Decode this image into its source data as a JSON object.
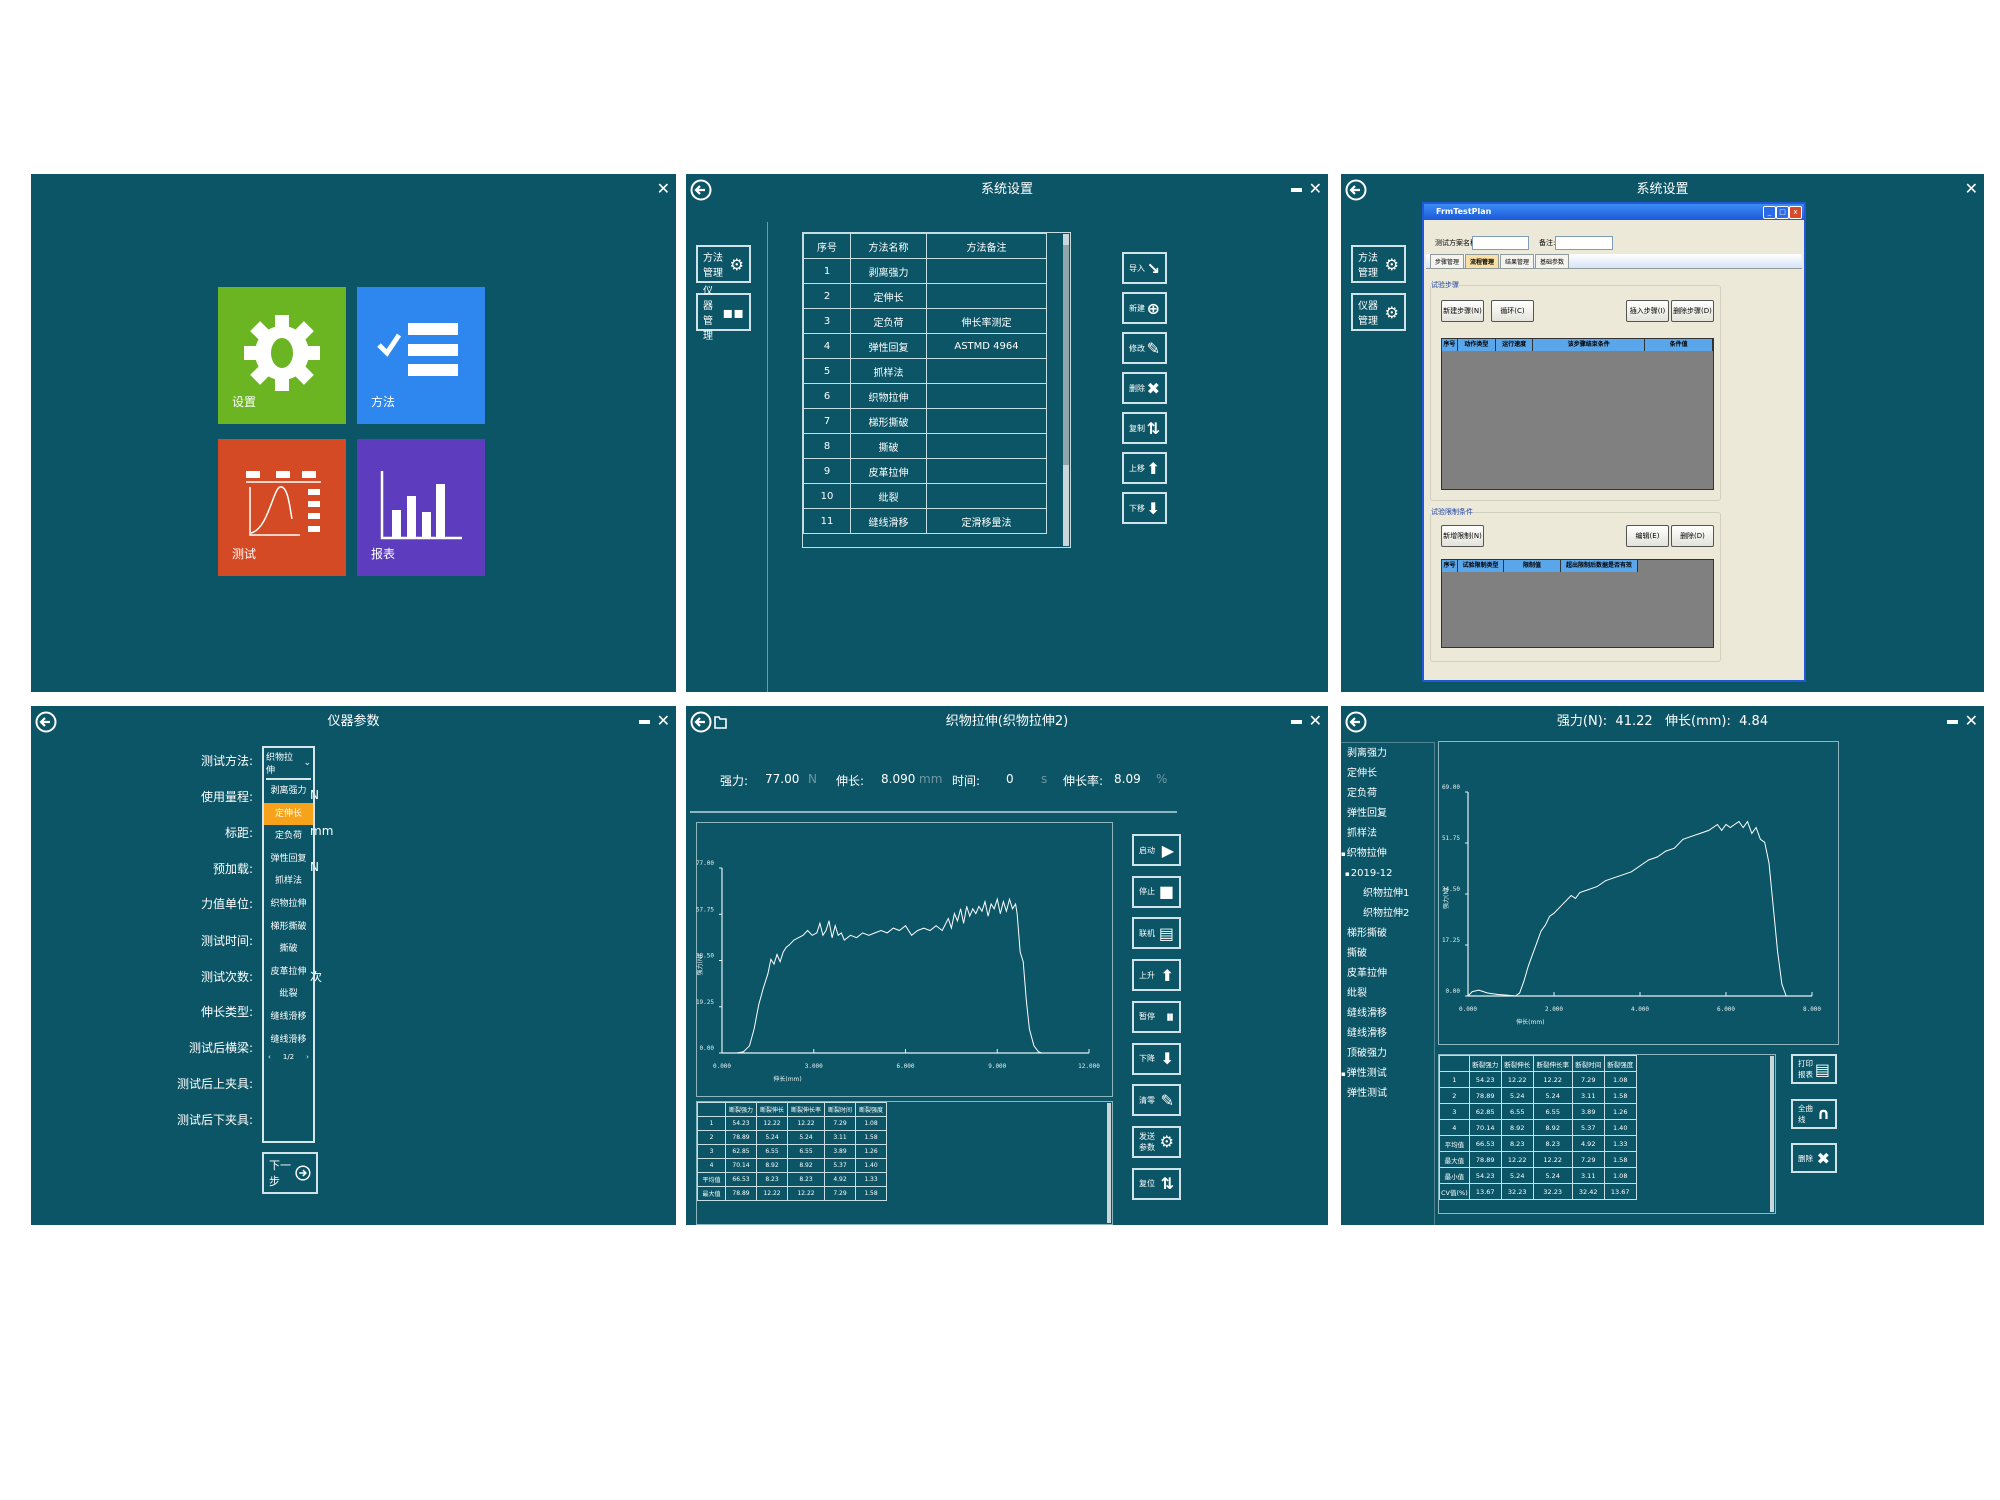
{
  "home": {
    "close_icon": "close-icon",
    "tiles": [
      {
        "label": "设置",
        "color": "#6ab521",
        "icon": "gear-icon"
      },
      {
        "label": "方法",
        "color": "#2d87ef",
        "icon": "checklist-icon"
      },
      {
        "label": "测试",
        "color": "#d44a25",
        "icon": "test-curve-icon"
      },
      {
        "label": "报表",
        "color": "#5d3dbd",
        "icon": "bar-chart-icon"
      }
    ]
  },
  "system_settings": {
    "title": "系统设置",
    "side_buttons": [
      {
        "label": "方法管理",
        "icon": "gear-icon"
      },
      {
        "label": "仪器管理",
        "icon": "blocks-icon"
      }
    ],
    "table": {
      "headers": [
        "序号",
        "方法名称",
        "方法备注"
      ],
      "rows": [
        [
          "1",
          "剥离强力",
          ""
        ],
        [
          "2",
          "定伸长",
          ""
        ],
        [
          "3",
          "定负荷",
          "伸长率测定"
        ],
        [
          "4",
          "弹性回复",
          "ASTMD 4964"
        ],
        [
          "5",
          "抓样法",
          ""
        ],
        [
          "6",
          "织物拉伸",
          ""
        ],
        [
          "7",
          "梯形撕破",
          ""
        ],
        [
          "8",
          "撕破",
          ""
        ],
        [
          "9",
          "皮革拉伸",
          ""
        ],
        [
          "10",
          "纰裂",
          ""
        ],
        [
          "11",
          "缝线滑移",
          "定滑移量法"
        ]
      ]
    },
    "actions": [
      {
        "label": "导入",
        "icon": "↘"
      },
      {
        "label": "新建",
        "icon": "⊕"
      },
      {
        "label": "修改",
        "icon": "✎"
      },
      {
        "label": "删除",
        "icon": "✖"
      },
      {
        "label": "复制",
        "icon": "⇅"
      },
      {
        "label": "上移",
        "icon": "⬆"
      },
      {
        "label": "下移",
        "icon": "⬇"
      }
    ]
  },
  "test_plan": {
    "title": "系统设置",
    "side_buttons": [
      {
        "label": "方法管理",
        "icon": "gear-icon"
      },
      {
        "label": "仪器管理",
        "icon": "gear-icon"
      }
    ],
    "window_title": "FrmTestPlan",
    "name_label": "测试方案名称:",
    "name_value": "",
    "remark_label": "备注:",
    "remark_value": "",
    "tabs": [
      "步骤管理",
      "流程管理",
      "结果管理",
      "基础参数"
    ],
    "active_tab": 1,
    "steps_group": "试验步骤",
    "steps_buttons": [
      "新建步骤(N)",
      "循环(C)",
      "插入步骤(I)",
      "删除步骤(D)"
    ],
    "steps_headers": [
      "序号",
      "动作类型",
      "运行速度",
      "该步骤结束条件",
      "条件值"
    ],
    "limits_group": "试验限制条件",
    "limits_buttons": [
      "新增限制(N)",
      "编辑(E)",
      "删除(D)"
    ],
    "limits_headers": [
      "序号",
      "试验限制类型",
      "限制值",
      "超出限制后数据是否有效"
    ]
  },
  "instrument_params": {
    "title": "仪器参数",
    "fields": [
      "测试方法:",
      "使用量程:",
      "标距:",
      "预加载:",
      "力值单位:",
      "测试时间:",
      "测试次数:",
      "伸长类型:",
      "测试后横梁:",
      "测试后上夹具:",
      "测试后下夹具:"
    ],
    "units": [
      {
        "row": 1,
        "text": "N"
      },
      {
        "row": 2,
        "text": "mm"
      },
      {
        "row": 3,
        "text": "N"
      },
      {
        "row": 6,
        "text": "次"
      }
    ],
    "method_selected": "织物拉伸",
    "dropdown_options": [
      "剥离强力",
      "定伸长",
      "定负荷",
      "弹性回复",
      "抓样法",
      "织物拉伸",
      "梯形撕破",
      "撕破",
      "皮革拉伸",
      "纰裂",
      "缝线滑移",
      "缝线滑移"
    ],
    "highlighted_option": 1,
    "highlight_color": "#f7a21b",
    "pager": {
      "prev": "‹",
      "page": "1/2",
      "next": "›"
    },
    "next_button": "下一步"
  },
  "test_run": {
    "title": "织物拉伸(织物拉伸2)",
    "readout": {
      "force_label": "强力:",
      "force_value": "77.00",
      "force_unit": "N",
      "elong_label": "伸长:",
      "elong_value": "8.090",
      "elong_unit": "mm",
      "time_label": "时间:",
      "time_value": "0",
      "time_unit": "s",
      "rate_label": "伸长率:",
      "rate_value": "8.09",
      "rate_unit": "%"
    },
    "buttons": [
      {
        "label": "启动",
        "icon": "▶"
      },
      {
        "label": "停止",
        "icon": "■"
      },
      {
        "label": "联机",
        "icon": "▤"
      },
      {
        "label": "上升",
        "icon": "⬆"
      },
      {
        "label": "暂停",
        "icon": "⏸"
      },
      {
        "label": "下降",
        "icon": "⬇"
      },
      {
        "label": "清零",
        "icon": "✎"
      },
      {
        "label": "发送参数",
        "icon": "⚙"
      },
      {
        "label": "复位",
        "icon": "⇅"
      }
    ],
    "results": {
      "headers": [
        "",
        "断裂强力",
        "断裂伸长",
        "断裂伸长率",
        "断裂时间",
        "断裂强度"
      ],
      "rows": [
        [
          "1",
          "54.23",
          "12.22",
          "12.22",
          "7.29",
          "1.08"
        ],
        [
          "2",
          "78.89",
          "5.24",
          "5.24",
          "3.11",
          "1.58"
        ],
        [
          "3",
          "62.85",
          "6.55",
          "6.55",
          "3.89",
          "1.26"
        ],
        [
          "4",
          "70.14",
          "8.92",
          "8.92",
          "5.37",
          "1.40"
        ],
        [
          "平均值",
          "66.53",
          "8.23",
          "8.23",
          "4.92",
          "1.33"
        ],
        [
          "最大值",
          "78.89",
          "12.22",
          "12.22",
          "7.29",
          "1.58"
        ]
      ]
    }
  },
  "report": {
    "title": "强力(N):  41.22   伸长(mm):  4.84",
    "tree": [
      {
        "label": "剥离强力",
        "level": 0,
        "expander": false
      },
      {
        "label": "定伸长",
        "level": 0,
        "expander": false
      },
      {
        "label": "定负荷",
        "level": 0,
        "expander": false
      },
      {
        "label": "弹性回复",
        "level": 0,
        "expander": false
      },
      {
        "label": "抓样法",
        "level": 0,
        "expander": false
      },
      {
        "label": "织物拉伸",
        "level": 0,
        "expander": true
      },
      {
        "label": "2019-12",
        "level": 1,
        "expander": true
      },
      {
        "label": "织物拉伸1",
        "level": 2,
        "expander": false
      },
      {
        "label": "织物拉伸2",
        "level": 2,
        "expander": false
      },
      {
        "label": "梯形撕破",
        "level": 0,
        "expander": false
      },
      {
        "label": "撕破",
        "level": 0,
        "expander": false
      },
      {
        "label": "皮革拉伸",
        "level": 0,
        "expander": false
      },
      {
        "label": "纰裂",
        "level": 0,
        "expander": false
      },
      {
        "label": "缝线滑移",
        "level": 0,
        "expander": false
      },
      {
        "label": "缝线滑移",
        "level": 0,
        "expander": false
      },
      {
        "label": "顶破强力",
        "level": 0,
        "expander": false
      },
      {
        "label": "弹性测试",
        "level": 0,
        "expander": true
      },
      {
        "label": "弹性测试",
        "level": 0,
        "expander": false
      }
    ],
    "results": {
      "headers": [
        "",
        "断裂强力",
        "断裂伸长",
        "断裂伸长率",
        "断裂时间",
        "断裂强度"
      ],
      "rows": [
        [
          "1",
          "54.23",
          "12.22",
          "12.22",
          "7.29",
          "1.08"
        ],
        [
          "2",
          "78.89",
          "5.24",
          "5.24",
          "3.11",
          "1.58"
        ],
        [
          "3",
          "62.85",
          "6.55",
          "6.55",
          "3.89",
          "1.26"
        ],
        [
          "4",
          "70.14",
          "8.92",
          "8.92",
          "5.37",
          "1.40"
        ],
        [
          "平均值",
          "66.53",
          "8.23",
          "8.23",
          "4.92",
          "1.33"
        ],
        [
          "最大值",
          "78.89",
          "12.22",
          "12.22",
          "7.29",
          "1.58"
        ],
        [
          "最小值",
          "54.23",
          "5.24",
          "5.24",
          "3.11",
          "1.08"
        ],
        [
          "CV值(%)",
          "13.67",
          "32.23",
          "32.23",
          "32.42",
          "13.67"
        ]
      ]
    },
    "buttons": [
      {
        "label": "打印报表",
        "icon": "▤"
      },
      {
        "label": "全曲线",
        "icon": "∩"
      },
      {
        "label": "删除",
        "icon": "✖"
      }
    ]
  },
  "chart_data": [
    {
      "type": "line",
      "xlabel": "伸长(mm)",
      "ylabel": "强力(N)",
      "xlim": [
        0,
        12
      ],
      "ylim": [
        0,
        77
      ],
      "xticks": [
        "0.000",
        "3.000",
        "6.000",
        "9.000",
        "12.000"
      ],
      "yticks": [
        "0.00",
        "19.25",
        "38.50",
        "57.75",
        "77.00"
      ],
      "grid": false,
      "x": [
        0.5,
        0.7,
        0.9,
        1.05,
        1.2,
        1.35,
        1.5,
        1.6,
        1.7,
        1.8,
        1.9,
        2.0,
        2.1,
        2.2,
        2.35,
        2.5,
        2.65,
        2.8,
        2.95,
        3.1,
        3.2,
        3.3,
        3.4,
        3.5,
        3.6,
        3.7,
        3.8,
        3.9,
        4.0,
        4.2,
        4.4,
        4.6,
        4.8,
        5.0,
        5.2,
        5.4,
        5.6,
        5.8,
        6.0,
        6.2,
        6.4,
        6.6,
        6.8,
        7.0,
        7.2,
        7.4,
        7.5,
        7.6,
        7.7,
        7.8,
        7.9,
        8.0,
        8.1,
        8.2,
        8.3,
        8.4,
        8.5,
        8.6,
        8.7,
        8.8,
        8.9,
        9.0,
        9.1,
        9.2,
        9.3,
        9.4,
        9.5,
        9.6,
        9.65,
        9.75,
        9.85,
        9.95,
        10.05,
        10.2,
        10.35,
        10.45
      ],
      "y": [
        0,
        0.5,
        3,
        10,
        20,
        27,
        33,
        39,
        37,
        41,
        38,
        42,
        44,
        45,
        47,
        48,
        49,
        51,
        49,
        50,
        54,
        49,
        51,
        55,
        48,
        53,
        49,
        50,
        47,
        49,
        48,
        50,
        49,
        50,
        51,
        50,
        52,
        51,
        53,
        49,
        51,
        52,
        51,
        53,
        51,
        56,
        52,
        58,
        55,
        60,
        54,
        61,
        57,
        60,
        58,
        61,
        59,
        63,
        57,
        62,
        60,
        64,
        58,
        63,
        59,
        64,
        60,
        62,
        58,
        42,
        38,
        22,
        10,
        3,
        0.5,
        0
      ],
      "color": "#ffffff"
    },
    {
      "type": "line",
      "xlabel": "伸长(mm)",
      "ylabel": "强力(N)",
      "xlim": [
        0,
        8
      ],
      "ylim": [
        0,
        69
      ],
      "xticks": [
        "0.000",
        "2.000",
        "4.000",
        "6.000",
        "8.000"
      ],
      "yticks": [
        "0.00",
        "17.25",
        "34.50",
        "51.75",
        "69.00"
      ],
      "grid": false,
      "x": [
        0,
        0.1,
        0.25,
        0.45,
        0.7,
        0.9,
        1.1,
        1.2,
        1.3,
        1.4,
        1.5,
        1.6,
        1.7,
        1.8,
        1.9,
        2.0,
        2.2,
        2.4,
        2.5,
        2.6,
        2.8,
        3.0,
        3.2,
        3.4,
        3.6,
        3.8,
        4.0,
        4.2,
        4.4,
        4.6,
        4.8,
        5.0,
        5.2,
        5.4,
        5.6,
        5.8,
        5.9,
        6.0,
        6.1,
        6.2,
        6.3,
        6.4,
        6.5,
        6.6,
        6.7,
        6.8,
        6.9,
        7.0,
        7.1,
        7.2,
        7.3,
        7.4
      ],
      "y": [
        0,
        1.5,
        2,
        1,
        0.5,
        0.3,
        0,
        1,
        5,
        10,
        14,
        18,
        22,
        24,
        27,
        28,
        31,
        34,
        33,
        35,
        36,
        37,
        39,
        40,
        41,
        42,
        44,
        46,
        47,
        49,
        50,
        53,
        54,
        55,
        56,
        58,
        56,
        58,
        57,
        58,
        59,
        57,
        59,
        55,
        57,
        53,
        52,
        45,
        30,
        15,
        4,
        0
      ],
      "color": "#ffffff"
    }
  ]
}
